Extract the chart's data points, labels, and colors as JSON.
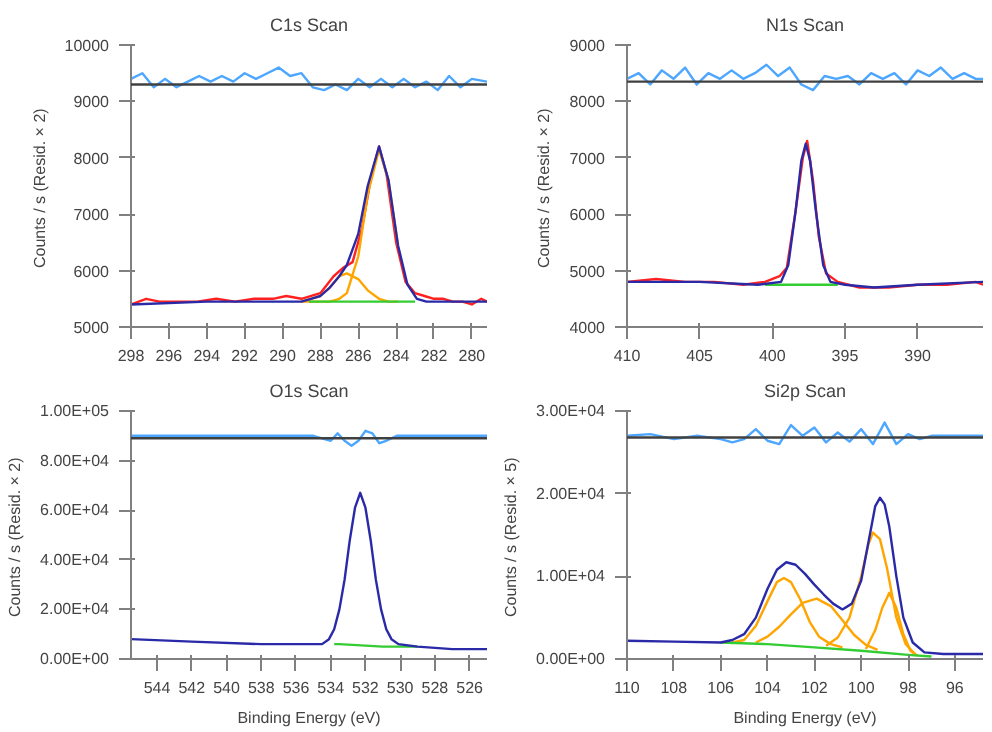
{
  "chart_data": [
    {
      "type": "line",
      "title": "C1s Scan",
      "ylabel": "Counts / s  (Resid. × 2)",
      "xlim": [
        298,
        279.2
      ],
      "ylim": [
        5000,
        10000
      ],
      "xticks": [
        298,
        296,
        294,
        292,
        290,
        288,
        286,
        284,
        282,
        280
      ],
      "yticks": [
        5000,
        6000,
        7000,
        8000,
        9000,
        10000
      ],
      "grid": false,
      "ref_lines": [
        {
          "axis": "y",
          "value": 9300,
          "color": "#404040"
        }
      ],
      "series": [
        {
          "color": "#4da6ff",
          "x": [
            298,
            297.4,
            296.8,
            296.2,
            295.6,
            295,
            294.4,
            293.8,
            293.2,
            292.6,
            292,
            291.4,
            290.8,
            290.2,
            289.6,
            289,
            288.4,
            287.8,
            287.2,
            286.6,
            286,
            285.4,
            284.8,
            284.2,
            283.6,
            283,
            282.4,
            281.8,
            281.2,
            280.6,
            280,
            279.2
          ],
          "values": [
            9400,
            9500,
            9250,
            9400,
            9250,
            9350,
            9450,
            9350,
            9450,
            9350,
            9500,
            9400,
            9500,
            9600,
            9450,
            9500,
            9250,
            9200,
            9300,
            9200,
            9400,
            9250,
            9400,
            9250,
            9400,
            9250,
            9350,
            9200,
            9450,
            9250,
            9400,
            9350
          ]
        },
        {
          "color": "#ff2020",
          "x": [
            298,
            297.2,
            296.5,
            295.5,
            294.5,
            293.5,
            292.5,
            291.5,
            290.5,
            289.8,
            289,
            288,
            287.3,
            286.8,
            286.3,
            285.8,
            285.3,
            284.9,
            284.5,
            284,
            283.5,
            283,
            282.5,
            282,
            281.5,
            281,
            280.5,
            280,
            279.5,
            279.2
          ],
          "values": [
            5400,
            5500,
            5450,
            5450,
            5450,
            5500,
            5450,
            5500,
            5500,
            5550,
            5500,
            5600,
            5900,
            6050,
            6150,
            6750,
            7700,
            8200,
            7700,
            6500,
            5800,
            5600,
            5550,
            5500,
            5500,
            5450,
            5450,
            5400,
            5500,
            5450
          ]
        },
        {
          "color": "#ffa500",
          "x": [
            289,
            288.5,
            288,
            287.5,
            287,
            286.6,
            286,
            285.5,
            284.9,
            284.4,
            283.9
          ],
          "values": [
            5450,
            5450,
            5450,
            5450,
            5500,
            5600,
            6250,
            7350,
            8150,
            7600,
            6450
          ]
        },
        {
          "color": "#ffa500",
          "x": [
            289,
            288.5,
            288,
            287.5,
            287,
            286.6,
            286,
            285.5,
            284.9,
            284.4,
            283.9
          ],
          "values": [
            5450,
            5500,
            5550,
            5700,
            5900,
            5950,
            5850,
            5650,
            5500,
            5450,
            5450
          ]
        },
        {
          "color": "#33cc33",
          "x": [
            288.6,
            284,
            283
          ],
          "values": [
            5450,
            5450,
            5450
          ]
        },
        {
          "color": "#2a2aa8",
          "x": [
            298,
            294,
            290,
            289,
            288.5,
            288,
            287.5,
            287,
            286.6,
            286,
            285.5,
            284.9,
            284.4,
            283.9,
            283.4,
            282.9,
            282.4,
            281,
            279.2
          ],
          "values": [
            5400,
            5450,
            5450,
            5450,
            5500,
            5550,
            5700,
            5900,
            6100,
            6650,
            7500,
            8200,
            7600,
            6450,
            5750,
            5500,
            5450,
            5450,
            5450
          ]
        }
      ]
    },
    {
      "type": "line",
      "title": "N1s Scan",
      "ylabel": "Counts / s  (Resid. × 2)",
      "xlim": [
        410,
        385.5
      ],
      "ylim": [
        4000,
        9000
      ],
      "xticks": [
        410,
        405,
        400,
        395,
        390
      ],
      "yticks": [
        4000,
        5000,
        6000,
        7000,
        8000,
        9000
      ],
      "grid": false,
      "ref_lines": [
        {
          "axis": "y",
          "value": 8350,
          "color": "#404040"
        }
      ],
      "series": [
        {
          "color": "#4da6ff",
          "x": [
            410,
            409.2,
            408.4,
            407.6,
            406.8,
            406,
            405.2,
            404.4,
            403.6,
            402.8,
            402,
            401.2,
            400.4,
            399.6,
            398.8,
            398,
            397.2,
            396.4,
            395.6,
            394.8,
            394,
            393.2,
            392.4,
            391.6,
            390.8,
            390,
            389.2,
            388.4,
            387.6,
            386.8,
            386,
            385.5
          ],
          "values": [
            8400,
            8500,
            8300,
            8550,
            8400,
            8600,
            8300,
            8500,
            8400,
            8550,
            8400,
            8500,
            8650,
            8450,
            8600,
            8300,
            8200,
            8450,
            8400,
            8450,
            8300,
            8500,
            8400,
            8500,
            8300,
            8550,
            8450,
            8600,
            8400,
            8500,
            8400,
            8400
          ]
        },
        {
          "color": "#ff2020",
          "x": [
            410,
            408,
            406,
            404,
            402,
            400.5,
            399.5,
            399,
            398.4,
            397.9,
            397.6,
            397.2,
            396.8,
            396.3,
            395.5,
            394,
            392,
            390,
            388,
            386,
            385.5
          ],
          "values": [
            4800,
            4850,
            4800,
            4800,
            4750,
            4800,
            4900,
            5050,
            6050,
            7000,
            7300,
            6600,
            5600,
            4950,
            4800,
            4700,
            4700,
            4750,
            4750,
            4800,
            4750
          ]
        },
        {
          "color": "#33cc33",
          "x": [
            400.5,
            398,
            395.5
          ],
          "values": [
            4750,
            4750,
            4750
          ]
        },
        {
          "color": "#2a2aa8",
          "x": [
            410,
            405,
            401,
            399.4,
            398.9,
            398.4,
            398,
            397.7,
            397.4,
            397,
            396.5,
            396,
            395,
            393,
            390,
            385.5
          ],
          "values": [
            4800,
            4800,
            4750,
            4800,
            5100,
            6050,
            6950,
            7250,
            6950,
            6050,
            5100,
            4800,
            4750,
            4700,
            4750,
            4800
          ]
        }
      ]
    },
    {
      "type": "line",
      "title": "O1s Scan",
      "xlabel": "Binding Energy (eV)",
      "ylabel": "Counts / s  (Resid. × 2)",
      "xlim": [
        545.5,
        525
      ],
      "ylim": [
        0,
        100000
      ],
      "xticks": [
        544,
        542,
        540,
        538,
        536,
        534,
        532,
        530,
        528,
        526
      ],
      "yticks": [
        {
          "value": 0,
          "label": "0.00E+00"
        },
        {
          "value": 20000,
          "label": "2.00E+04"
        },
        {
          "value": 40000,
          "label": "4.00E+04"
        },
        {
          "value": 60000,
          "label": "6.00E+04"
        },
        {
          "value": 80000,
          "label": "8.00E+04"
        },
        {
          "value": 100000,
          "label": "1.00E+05"
        }
      ],
      "grid": false,
      "ref_lines": [
        {
          "axis": "y",
          "value": 89000,
          "color": "#404040"
        }
      ],
      "series": [
        {
          "color": "#4da6ff",
          "x": [
            545.5,
            542,
            539,
            536,
            535,
            534.5,
            534,
            533.6,
            533.2,
            532.8,
            532.4,
            532,
            531.6,
            531.2,
            530.8,
            530.2,
            529,
            527,
            525
          ],
          "values": [
            90000,
            90000,
            90000,
            90000,
            90000,
            89000,
            88000,
            91000,
            88000,
            86000,
            88000,
            92000,
            91000,
            87000,
            88000,
            90000,
            90000,
            90000,
            90000
          ]
        },
        {
          "color": "#33cc33",
          "x": [
            533.8,
            533.5,
            531,
            529
          ],
          "values": [
            6000,
            6000,
            5000,
            5000
          ]
        },
        {
          "color": "#2a2aa8",
          "x": [
            545.5,
            542,
            538,
            535,
            534.5,
            534.1,
            533.8,
            533.5,
            533.2,
            532.9,
            532.6,
            532.3,
            532,
            531.7,
            531.4,
            531.1,
            530.8,
            530.5,
            530.1,
            529,
            527,
            525
          ],
          "values": [
            8000,
            7000,
            6000,
            6000,
            6000,
            8000,
            12000,
            20000,
            32000,
            48000,
            61000,
            67000,
            61000,
            48000,
            32000,
            20000,
            12000,
            8000,
            6000,
            5000,
            4000,
            4000
          ]
        }
      ]
    },
    {
      "type": "line",
      "title": "Si2p Scan",
      "xlabel": "Binding Energy (eV)",
      "ylabel": "Counts / s  (Resid. × 5)",
      "xlim": [
        110,
        94.8
      ],
      "ylim": [
        0,
        30000
      ],
      "xticks": [
        110,
        108,
        106,
        104,
        102,
        100,
        98,
        96
      ],
      "yticks": [
        {
          "value": 0,
          "label": "0.00E+00"
        },
        {
          "value": 10000,
          "label": "1.00E+04"
        },
        {
          "value": 20000,
          "label": "2.00E+04"
        },
        {
          "value": 30000,
          "label": "3.00E+04"
        }
      ],
      "grid": false,
      "ref_lines": [
        {
          "axis": "y",
          "value": 26800,
          "color": "#404040"
        }
      ],
      "series": [
        {
          "color": "#4da6ff",
          "x": [
            110,
            109,
            108,
            107,
            106,
            105.5,
            105,
            104.5,
            104,
            103.5,
            103,
            102.5,
            102,
            101.5,
            101,
            100.5,
            100,
            99.5,
            99,
            98.5,
            98,
            97.5,
            97,
            96,
            94.8
          ],
          "values": [
            27000,
            27200,
            26600,
            27000,
            26600,
            26200,
            26600,
            27800,
            26400,
            26000,
            28300,
            27000,
            28000,
            26200,
            27400,
            26300,
            27800,
            26000,
            28600,
            26000,
            27200,
            26600,
            27000,
            27000,
            27000
          ]
        },
        {
          "color": "#ffa500",
          "x": [
            105.5,
            105,
            104.5,
            104,
            103.6,
            103.3,
            103,
            102.6,
            102.2,
            101.8,
            101.3,
            100.8
          ],
          "values": [
            2000,
            2300,
            4000,
            7000,
            9300,
            9800,
            9300,
            7200,
            4500,
            2700,
            1800,
            1400
          ]
        },
        {
          "color": "#ffa500",
          "x": [
            104.5,
            104,
            103.5,
            103,
            102.5,
            101.9,
            101.3,
            100.8,
            100.3,
            99.8,
            99.3
          ],
          "values": [
            2000,
            2700,
            3900,
            5400,
            6800,
            7300,
            6400,
            4700,
            2900,
            1700,
            1100
          ]
        },
        {
          "color": "#ffa500",
          "x": [
            101.5,
            101,
            100.5,
            100,
            99.7,
            99.5,
            99.2,
            98.9,
            98.5,
            98.1,
            97.7
          ],
          "values": [
            1600,
            2600,
            5000,
            10000,
            13800,
            15300,
            14500,
            11000,
            5000,
            1800,
            600
          ]
        },
        {
          "color": "#ffa500",
          "x": [
            99.8,
            99.4,
            99.1,
            98.8,
            98.5,
            98.2,
            97.9,
            97.6
          ],
          "values": [
            1200,
            3500,
            6200,
            8000,
            6200,
            3000,
            1000,
            400
          ]
        },
        {
          "color": "#33cc33",
          "x": [
            106,
            104,
            102,
            100,
            98,
            97
          ],
          "values": [
            2000,
            1800,
            1400,
            1000,
            500,
            300
          ]
        },
        {
          "color": "#2a2aa8",
          "x": [
            110,
            108,
            106,
            105.5,
            105,
            104.5,
            104,
            103.6,
            103.2,
            102.8,
            102.4,
            102,
            101.6,
            101.2,
            100.8,
            100.4,
            100,
            99.7,
            99.4,
            99.2,
            99,
            98.8,
            98.5,
            98.2,
            97.8,
            97.3,
            96.5,
            94.8
          ],
          "values": [
            2200,
            2100,
            2000,
            2300,
            3000,
            5000,
            8500,
            10800,
            11700,
            11400,
            10300,
            9000,
            7800,
            6700,
            6000,
            6700,
            9500,
            14000,
            18500,
            19500,
            18700,
            16000,
            10000,
            5000,
            2000,
            800,
            600,
            600
          ]
        }
      ]
    }
  ]
}
